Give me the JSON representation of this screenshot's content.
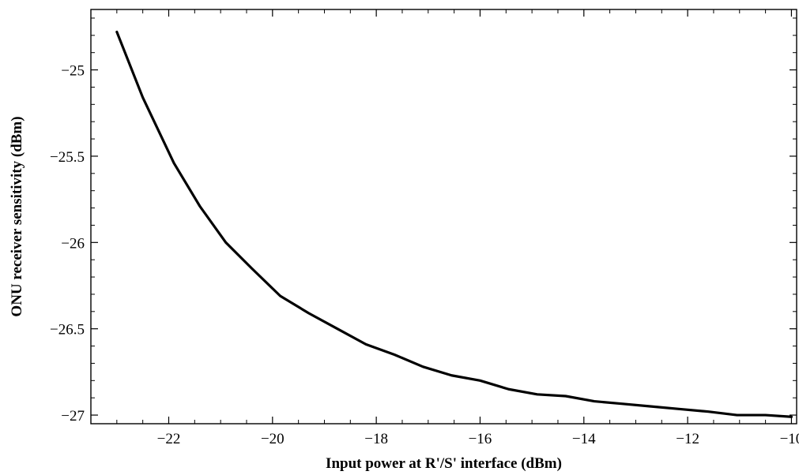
{
  "chart_data": {
    "type": "line",
    "title": "",
    "xlabel": "Input power at R'/S' interface (dBm)",
    "ylabel": "ONU receiver sensitivity (dBm)",
    "xlim": [
      -23.5,
      -9.9
    ],
    "ylim": [
      -27.05,
      -24.65
    ],
    "xticks": [
      -22,
      -20,
      -18,
      -16,
      -14,
      -12,
      -10
    ],
    "xtick_labels": [
      "−22",
      "−20",
      "−18",
      "−16",
      "−14",
      "−12",
      "−10"
    ],
    "yticks": [
      -25,
      -25.5,
      -26,
      -26.5,
      -27
    ],
    "ytick_labels": [
      "−25",
      "−25.5",
      "−26",
      "−26.5",
      "−27"
    ],
    "grid": false,
    "series": [
      {
        "color": "#000000",
        "x": [
          -23.0,
          -22.5,
          -21.9,
          -21.4,
          -20.9,
          -20.4,
          -19.85,
          -19.3,
          -18.75,
          -18.2,
          -17.65,
          -17.1,
          -16.55,
          -16.0,
          -15.45,
          -14.9,
          -14.35,
          -13.8,
          -13.25,
          -12.7,
          -12.15,
          -11.6,
          -11.05,
          -10.5,
          -10.0
        ],
        "y": [
          -24.78,
          -25.16,
          -25.54,
          -25.79,
          -26.0,
          -26.15,
          -26.31,
          -26.41,
          -26.5,
          -26.59,
          -26.65,
          -26.72,
          -26.77,
          -26.8,
          -26.85,
          -26.88,
          -26.89,
          -26.92,
          -26.935,
          -26.95,
          -26.965,
          -26.98,
          -27.0,
          -27.0,
          -27.01
        ]
      }
    ]
  }
}
